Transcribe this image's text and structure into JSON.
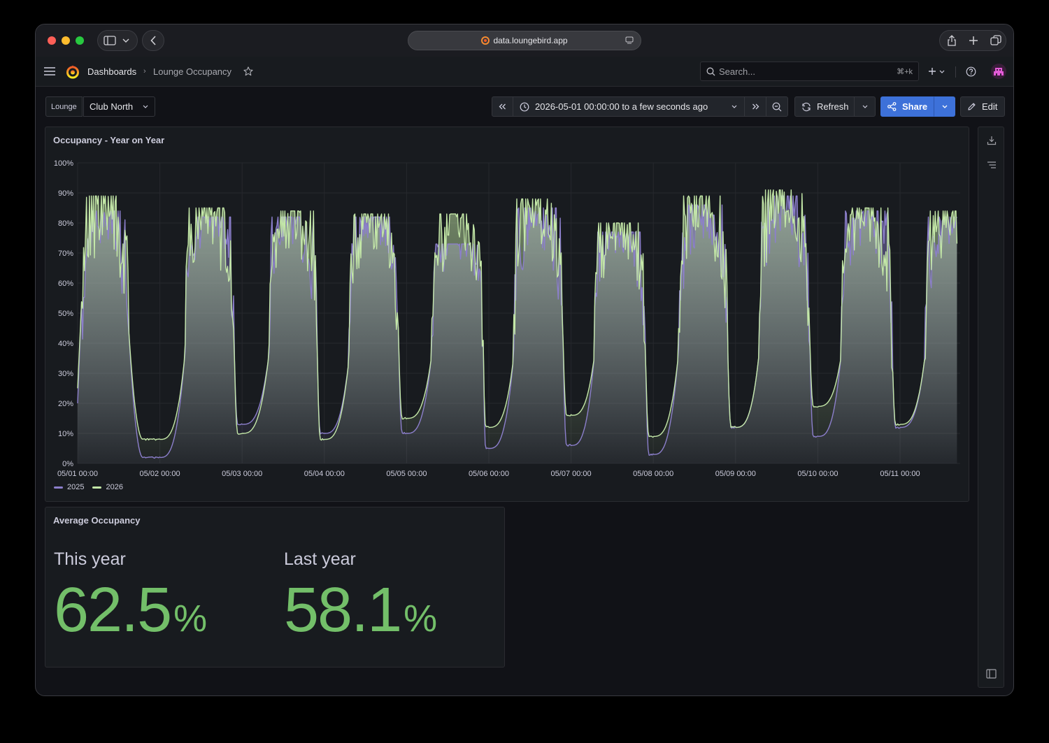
{
  "browser": {
    "address": "data.loungebird.app"
  },
  "nav": {
    "breadcrumb_root": "Dashboards",
    "breadcrumb_current": "Lounge Occupancy",
    "search_placeholder": "Search...",
    "search_shortcut": "⌘+k"
  },
  "controls": {
    "variable_label": "Lounge",
    "variable_value": "Club North",
    "time_range": "2026-05-01 00:00:00 to a few seconds ago",
    "refresh_label": "Refresh",
    "share_label": "Share",
    "edit_label": "Edit"
  },
  "timeseries_panel": {
    "title": "Occupancy - Year on Year",
    "legend": [
      {
        "name": "2025",
        "color": "#8c7fcc"
      },
      {
        "name": "2026",
        "color": "#c4e8a8"
      }
    ]
  },
  "stat_panel": {
    "title": "Average Occupancy",
    "stats": [
      {
        "label": "This year",
        "value": "62.5",
        "unit": "%"
      },
      {
        "label": "Last year",
        "value": "58.1",
        "unit": "%"
      }
    ],
    "value_color": "#73bf69"
  },
  "chart_data": {
    "type": "area",
    "title": "Occupancy - Year on Year",
    "xlabel": "",
    "ylabel": "",
    "ylim": [
      0,
      100
    ],
    "y_ticks": [
      "0%",
      "10%",
      "20%",
      "30%",
      "40%",
      "50%",
      "60%",
      "70%",
      "80%",
      "90%",
      "100%"
    ],
    "x_ticks": [
      "05/01 00:00",
      "05/02 00:00",
      "05/03 00:00",
      "05/04 00:00",
      "05/05 00:00",
      "05/06 00:00",
      "05/07 00:00",
      "05/08 00:00",
      "05/09 00:00",
      "05/10 00:00",
      "05/11 00:00"
    ],
    "x_range_days": [
      0,
      10.7
    ],
    "grid": true,
    "legend_position": "bottom-left",
    "series": [
      {
        "name": "2025",
        "color": "#8c7fcc",
        "daily_profile": [
          {
            "day": 0,
            "night_low": 20,
            "peak": 84,
            "morning_rise": 0.05,
            "evening_drop": 0.62
          },
          {
            "day": 1,
            "night_low": 2,
            "peak": 82,
            "morning_rise": 0.3,
            "evening_drop": 0.9
          },
          {
            "day": 2,
            "night_low": 13,
            "peak": 82,
            "morning_rise": 0.32,
            "evening_drop": 0.91
          },
          {
            "day": 3,
            "night_low": 10,
            "peak": 82,
            "morning_rise": 0.3,
            "evening_drop": 0.9
          },
          {
            "day": 4,
            "night_low": 10,
            "peak": 73,
            "morning_rise": 0.3,
            "evening_drop": 0.93
          },
          {
            "day": 5,
            "night_low": 5,
            "peak": 85,
            "morning_rise": 0.3,
            "evening_drop": 0.9
          },
          {
            "day": 6,
            "night_low": 6,
            "peak": 77,
            "morning_rise": 0.28,
            "evening_drop": 0.9
          },
          {
            "day": 7,
            "night_low": 3,
            "peak": 86,
            "morning_rise": 0.3,
            "evening_drop": 0.9
          },
          {
            "day": 8,
            "night_low": 12,
            "peak": 89,
            "morning_rise": 0.28,
            "evening_drop": 0.9
          },
          {
            "day": 9,
            "night_low": 9,
            "peak": 84,
            "morning_rise": 0.28,
            "evening_drop": 0.9
          },
          {
            "day": 10,
            "night_low": 12,
            "peak": 82,
            "morning_rise": 0.3,
            "evening_drop": 1.0
          }
        ]
      },
      {
        "name": "2026",
        "color": "#c4e8a8",
        "daily_profile": [
          {
            "day": 0,
            "night_low": 25,
            "peak": 89,
            "morning_rise": 0.05,
            "evening_drop": 0.62
          },
          {
            "day": 1,
            "night_low": 8,
            "peak": 85,
            "morning_rise": 0.3,
            "evening_drop": 0.9
          },
          {
            "day": 2,
            "night_low": 10,
            "peak": 84,
            "morning_rise": 0.32,
            "evening_drop": 0.91
          },
          {
            "day": 3,
            "night_low": 8,
            "peak": 83,
            "morning_rise": 0.3,
            "evening_drop": 0.9
          },
          {
            "day": 4,
            "night_low": 15,
            "peak": 83,
            "morning_rise": 0.3,
            "evening_drop": 0.93
          },
          {
            "day": 5,
            "night_low": 12,
            "peak": 88,
            "morning_rise": 0.3,
            "evening_drop": 0.9
          },
          {
            "day": 6,
            "night_low": 16,
            "peak": 80,
            "morning_rise": 0.28,
            "evening_drop": 0.9
          },
          {
            "day": 7,
            "night_low": 9,
            "peak": 89,
            "morning_rise": 0.3,
            "evening_drop": 0.9
          },
          {
            "day": 8,
            "night_low": 12,
            "peak": 91,
            "morning_rise": 0.28,
            "evening_drop": 0.9
          },
          {
            "day": 9,
            "night_low": 19,
            "peak": 85,
            "morning_rise": 0.28,
            "evening_drop": 0.9
          },
          {
            "day": 10,
            "night_low": 13,
            "peak": 84,
            "morning_rise": 0.3,
            "evening_drop": 1.0
          }
        ]
      }
    ]
  }
}
